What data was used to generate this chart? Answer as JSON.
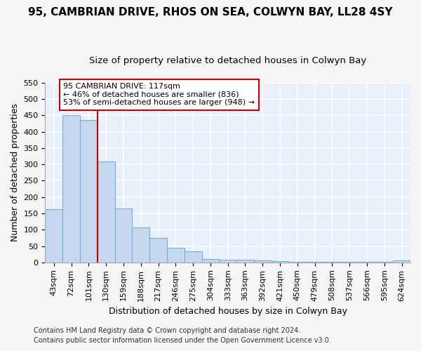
{
  "title": "95, CAMBRIAN DRIVE, RHOS ON SEA, COLWYN BAY, LL28 4SY",
  "subtitle": "Size of property relative to detached houses in Colwyn Bay",
  "xlabel": "Distribution of detached houses by size in Colwyn Bay",
  "ylabel": "Number of detached properties",
  "categories": [
    "43sqm",
    "72sqm",
    "101sqm",
    "130sqm",
    "159sqm",
    "188sqm",
    "217sqm",
    "246sqm",
    "275sqm",
    "304sqm",
    "333sqm",
    "363sqm",
    "392sqm",
    "421sqm",
    "450sqm",
    "479sqm",
    "508sqm",
    "537sqm",
    "566sqm",
    "595sqm",
    "624sqm"
  ],
  "values": [
    163,
    450,
    435,
    308,
    165,
    106,
    74,
    44,
    33,
    11,
    8,
    8,
    6,
    3,
    1,
    1,
    1,
    1,
    1,
    1,
    5
  ],
  "bar_color": "#c5d8f0",
  "bar_edge_color": "#7aadd4",
  "vline_color": "#cc0000",
  "vline_x_index": 2.5,
  "annotation_line1": "95 CAMBRIAN DRIVE: 117sqm",
  "annotation_line2": "← 46% of detached houses are smaller (836)",
  "annotation_line3": "53% of semi-detached houses are larger (948) →",
  "annotation_box_color": "#ffffff",
  "annotation_box_edge_color": "#cc0000",
  "ylim": [
    0,
    550
  ],
  "yticks": [
    0,
    50,
    100,
    150,
    200,
    250,
    300,
    350,
    400,
    450,
    500,
    550
  ],
  "footer_line1": "Contains HM Land Registry data © Crown copyright and database right 2024.",
  "footer_line2": "Contains public sector information licensed under the Open Government Licence v3.0.",
  "plot_bg_color": "#e8f0fb",
  "fig_bg_color": "#f5f5f5",
  "grid_color": "#ffffff",
  "title_fontsize": 11,
  "subtitle_fontsize": 9.5,
  "axis_label_fontsize": 9,
  "tick_fontsize": 8,
  "annotation_fontsize": 8,
  "footer_fontsize": 7
}
